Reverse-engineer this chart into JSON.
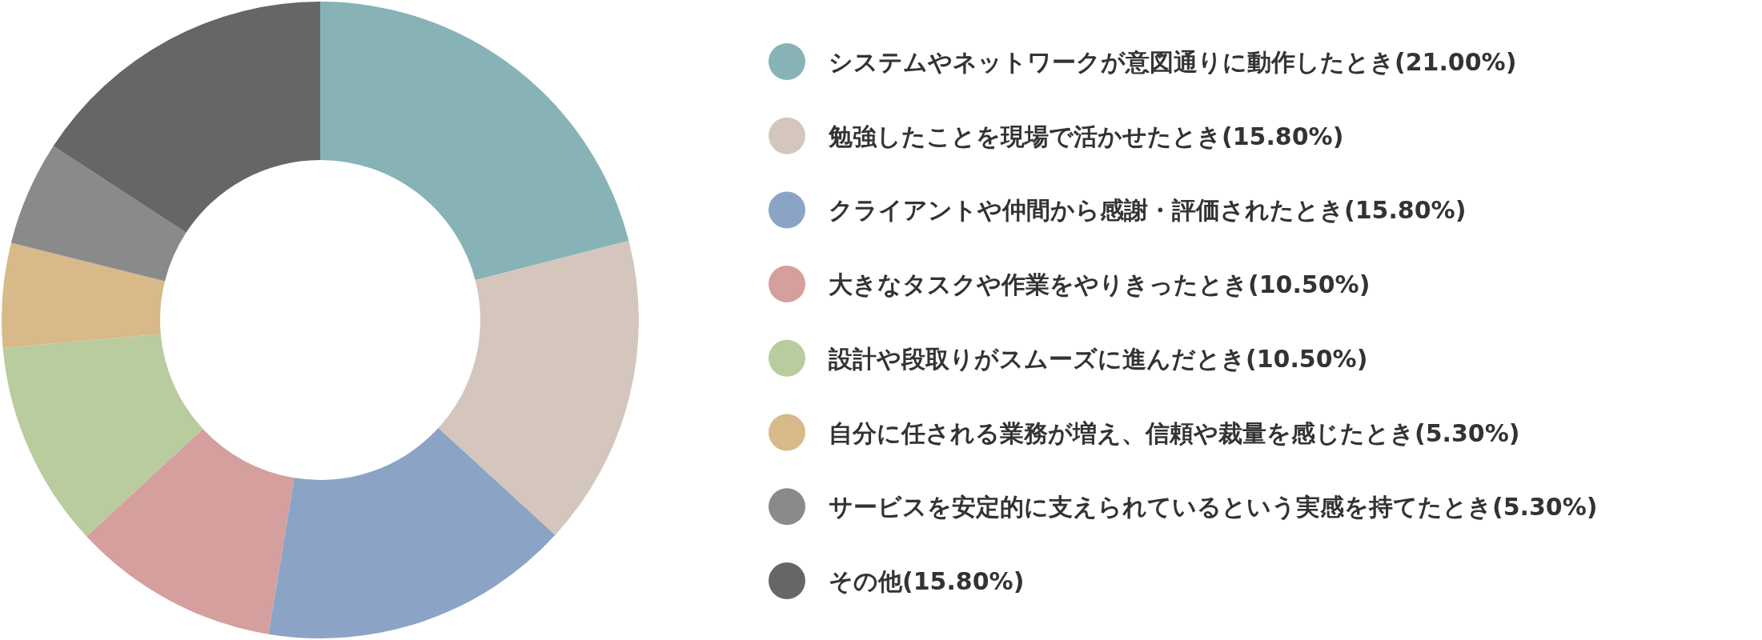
{
  "chart_data": {
    "type": "donut",
    "legend": "right",
    "categories": [
      "システムやネットワークが意図通りに動作したとき(21.00%)",
      "勉強したことを現場で活かせたとき(15.80%)",
      "クライアントや仲間から感謝・評価されたとき(15.80%)",
      "大きなタスクや作業をやりきったとき(10.50%)",
      "設計や段取りがスムーズに進んだとき(10.50%)",
      "自分に任される業務が増え、信頼や裁量を感じたとき(5.30%)",
      "サービスを安定的に支えられているという実感を持てたとき(5.30%)",
      "その他(15.80%)"
    ],
    "values": [
      21.0,
      15.8,
      15.8,
      10.5,
      10.5,
      5.3,
      5.3,
      15.8
    ],
    "colors": [
      "#87b3b7",
      "#d4c6bd",
      "#8ba4c6",
      "#d59f9e",
      "#b8cc9e",
      "#d7b98a",
      "#8a8a8a",
      "#666666"
    ]
  }
}
